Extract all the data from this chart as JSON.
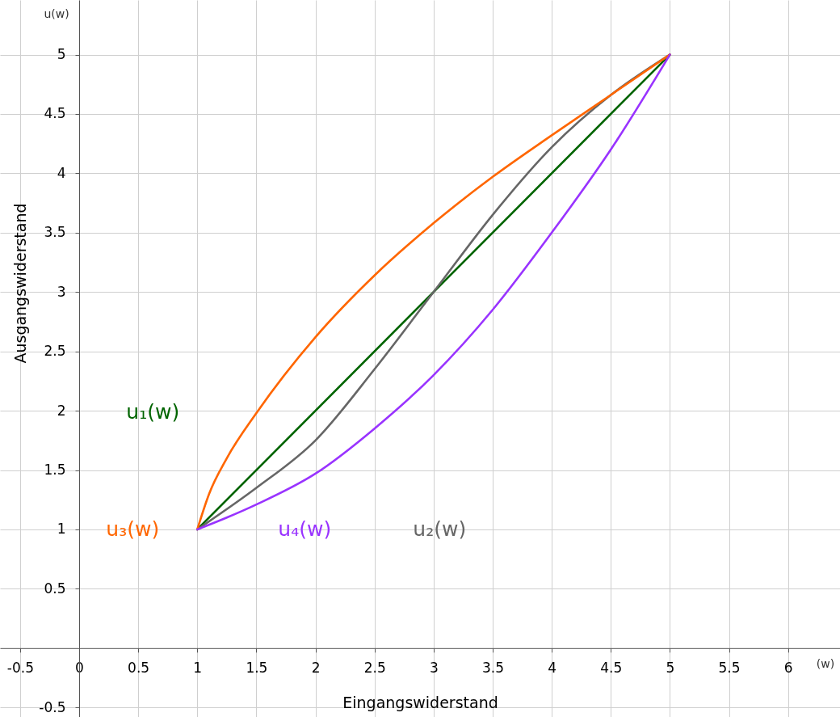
{
  "chart_data": {
    "type": "line",
    "xlabel": "Eingangswiderstand",
    "ylabel": "Ausgangswiderstand",
    "annotations": [
      "u(w)",
      "(w)"
    ],
    "xlim": [
      -0.67,
      6.44
    ],
    "ylim": [
      -0.58,
      5.46
    ],
    "xticks": [
      -0.5,
      0,
      0.5,
      1,
      1.5,
      2,
      2.5,
      3,
      3.5,
      4,
      4.5,
      5,
      5.5,
      6
    ],
    "yticks": [
      -0.5,
      0.5,
      1,
      1.5,
      2,
      2.5,
      3,
      3.5,
      4,
      4.5,
      5
    ],
    "grid": true,
    "line_style": "solid",
    "marker": "none",
    "series": [
      {
        "name": "u₁(w)",
        "color": "#006400",
        "x": [
          1,
          5
        ],
        "values": [
          1,
          5
        ]
      },
      {
        "name": "u₂(w)",
        "color": "#666666",
        "x": [
          1,
          1.5,
          2,
          2.5,
          3,
          3.5,
          4,
          4.5,
          5
        ],
        "values": [
          1,
          1.35,
          1.75,
          2.35,
          3,
          3.65,
          4.22,
          4.66,
          5
        ]
      },
      {
        "name": "u₃(w)",
        "color": "#ff6600",
        "x": [
          1,
          1.1,
          1.25,
          1.5,
          2,
          2.5,
          3,
          3.5,
          4,
          4.5,
          5
        ],
        "values": [
          1,
          1.3,
          1.6,
          1.98,
          2.62,
          3.14,
          3.58,
          3.97,
          4.32,
          4.66,
          5
        ]
      },
      {
        "name": "u₄(w)",
        "color": "#9933ff",
        "x": [
          1,
          1.25,
          1.5,
          2,
          2.5,
          3,
          3.5,
          4,
          4.5,
          5
        ],
        "values": [
          1,
          1.1,
          1.21,
          1.47,
          1.85,
          2.3,
          2.85,
          3.5,
          4.2,
          5
        ]
      }
    ]
  }
}
